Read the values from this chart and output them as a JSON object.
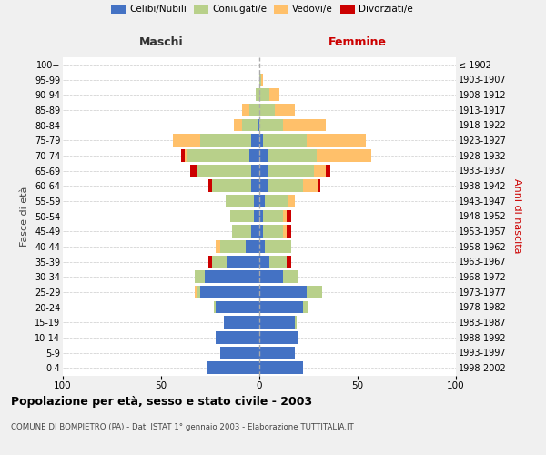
{
  "age_groups": [
    "0-4",
    "5-9",
    "10-14",
    "15-19",
    "20-24",
    "25-29",
    "30-34",
    "35-39",
    "40-44",
    "45-49",
    "50-54",
    "55-59",
    "60-64",
    "65-69",
    "70-74",
    "75-79",
    "80-84",
    "85-89",
    "90-94",
    "95-99",
    "100+"
  ],
  "birth_years": [
    "1998-2002",
    "1993-1997",
    "1988-1992",
    "1983-1987",
    "1978-1982",
    "1973-1977",
    "1968-1972",
    "1963-1967",
    "1958-1962",
    "1953-1957",
    "1948-1952",
    "1943-1947",
    "1938-1942",
    "1933-1937",
    "1928-1932",
    "1923-1927",
    "1918-1922",
    "1913-1917",
    "1908-1912",
    "1903-1907",
    "≤ 1902"
  ],
  "m_celibi": [
    27,
    20,
    22,
    18,
    22,
    30,
    28,
    16,
    7,
    4,
    3,
    3,
    4,
    4,
    5,
    4,
    1,
    0,
    0,
    0,
    0
  ],
  "m_coniugati": [
    0,
    0,
    0,
    0,
    1,
    2,
    5,
    8,
    13,
    10,
    12,
    14,
    20,
    28,
    32,
    26,
    8,
    5,
    2,
    0,
    0
  ],
  "m_vedovi": [
    0,
    0,
    0,
    0,
    0,
    1,
    0,
    0,
    2,
    0,
    0,
    0,
    0,
    0,
    1,
    14,
    4,
    4,
    0,
    0,
    0
  ],
  "m_divorziati": [
    0,
    0,
    0,
    0,
    0,
    0,
    0,
    2,
    0,
    0,
    0,
    0,
    2,
    3,
    2,
    0,
    0,
    0,
    0,
    0,
    0
  ],
  "f_nubili": [
    22,
    18,
    20,
    18,
    22,
    24,
    12,
    5,
    3,
    2,
    2,
    3,
    4,
    4,
    4,
    2,
    0,
    0,
    0,
    0,
    0
  ],
  "f_coniugate": [
    0,
    0,
    0,
    1,
    3,
    8,
    8,
    9,
    13,
    10,
    10,
    12,
    18,
    24,
    25,
    22,
    12,
    8,
    5,
    1,
    0
  ],
  "f_vedove": [
    0,
    0,
    0,
    0,
    0,
    0,
    0,
    0,
    0,
    2,
    2,
    3,
    8,
    6,
    28,
    30,
    22,
    10,
    5,
    1,
    0
  ],
  "f_divorziate": [
    0,
    0,
    0,
    0,
    0,
    0,
    0,
    2,
    0,
    2,
    2,
    0,
    1,
    2,
    0,
    0,
    0,
    0,
    0,
    0,
    0
  ],
  "color_celibi": "#4472c4",
  "color_coniugati": "#b8d08a",
  "color_vedovi": "#ffc06a",
  "color_divorziati": "#cc0000",
  "title": "Popolazione per età, sesso e stato civile - 2003",
  "subtitle": "COMUNE DI BOMPIETRO (PA) - Dati ISTAT 1° gennaio 2003 - Elaborazione TUTTITALIA.IT",
  "label_maschi": "Maschi",
  "label_femmine": "Femmine",
  "ylabel_left": "Fasce di età",
  "ylabel_right": "Anni di nascita",
  "legend_labels": [
    "Celibi/Nubili",
    "Coniugati/e",
    "Vedovi/e",
    "Divorziati/e"
  ],
  "xlim": 100,
  "bg_color": "#f0f0f0",
  "plot_bg_color": "#ffffff"
}
